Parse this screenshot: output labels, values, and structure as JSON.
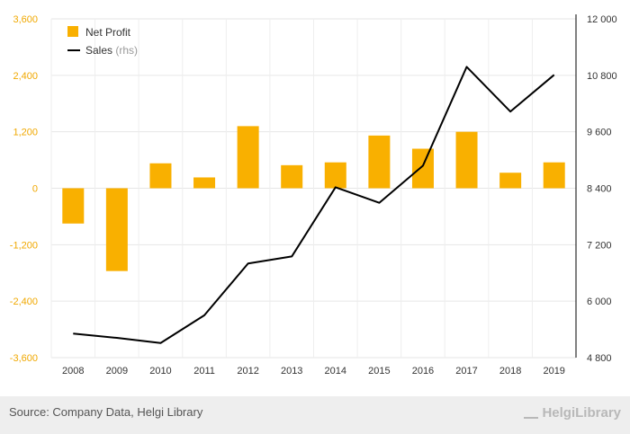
{
  "chart_data": {
    "type": "bar+line",
    "categories": [
      "2008",
      "2009",
      "2010",
      "2011",
      "2012",
      "2013",
      "2014",
      "2015",
      "2016",
      "2017",
      "2018",
      "2019"
    ],
    "series": [
      {
        "name": "Net Profit",
        "type": "bar",
        "axis": "left",
        "color": "#f9b000",
        "values": [
          -750,
          -1760,
          530,
          230,
          1320,
          490,
          550,
          1120,
          840,
          1200,
          330,
          550
        ]
      },
      {
        "name": "Sales",
        "name_suffix": "(rhs)",
        "type": "line",
        "axis": "right",
        "color": "#000000",
        "values": [
          5310,
          5220,
          5110,
          5700,
          6800,
          6950,
          8420,
          8090,
          8880,
          10980,
          10030,
          10810
        ]
      }
    ],
    "y_left": {
      "min": -3600,
      "max": 3600,
      "ticks": [
        3600,
        2400,
        1200,
        0,
        -1200,
        -2400,
        -3600
      ],
      "tick_labels": [
        "3,600",
        "2,400",
        "1,200",
        "0",
        "-1,200",
        "-2,400",
        "-3,600"
      ]
    },
    "y_right": {
      "min": 4800,
      "max": 12000,
      "ticks": [
        12000,
        10800,
        9600,
        8400,
        7200,
        6000,
        4800
      ],
      "tick_labels": [
        "12 000",
        "10 800",
        "9 600",
        "8 400",
        "7 200",
        "6 000",
        "4 800"
      ]
    },
    "grid": true,
    "legend_position": "top-left"
  },
  "footer": {
    "source": "Source: Company Data, Helgi Library",
    "brand": "HelgiLibrary"
  }
}
